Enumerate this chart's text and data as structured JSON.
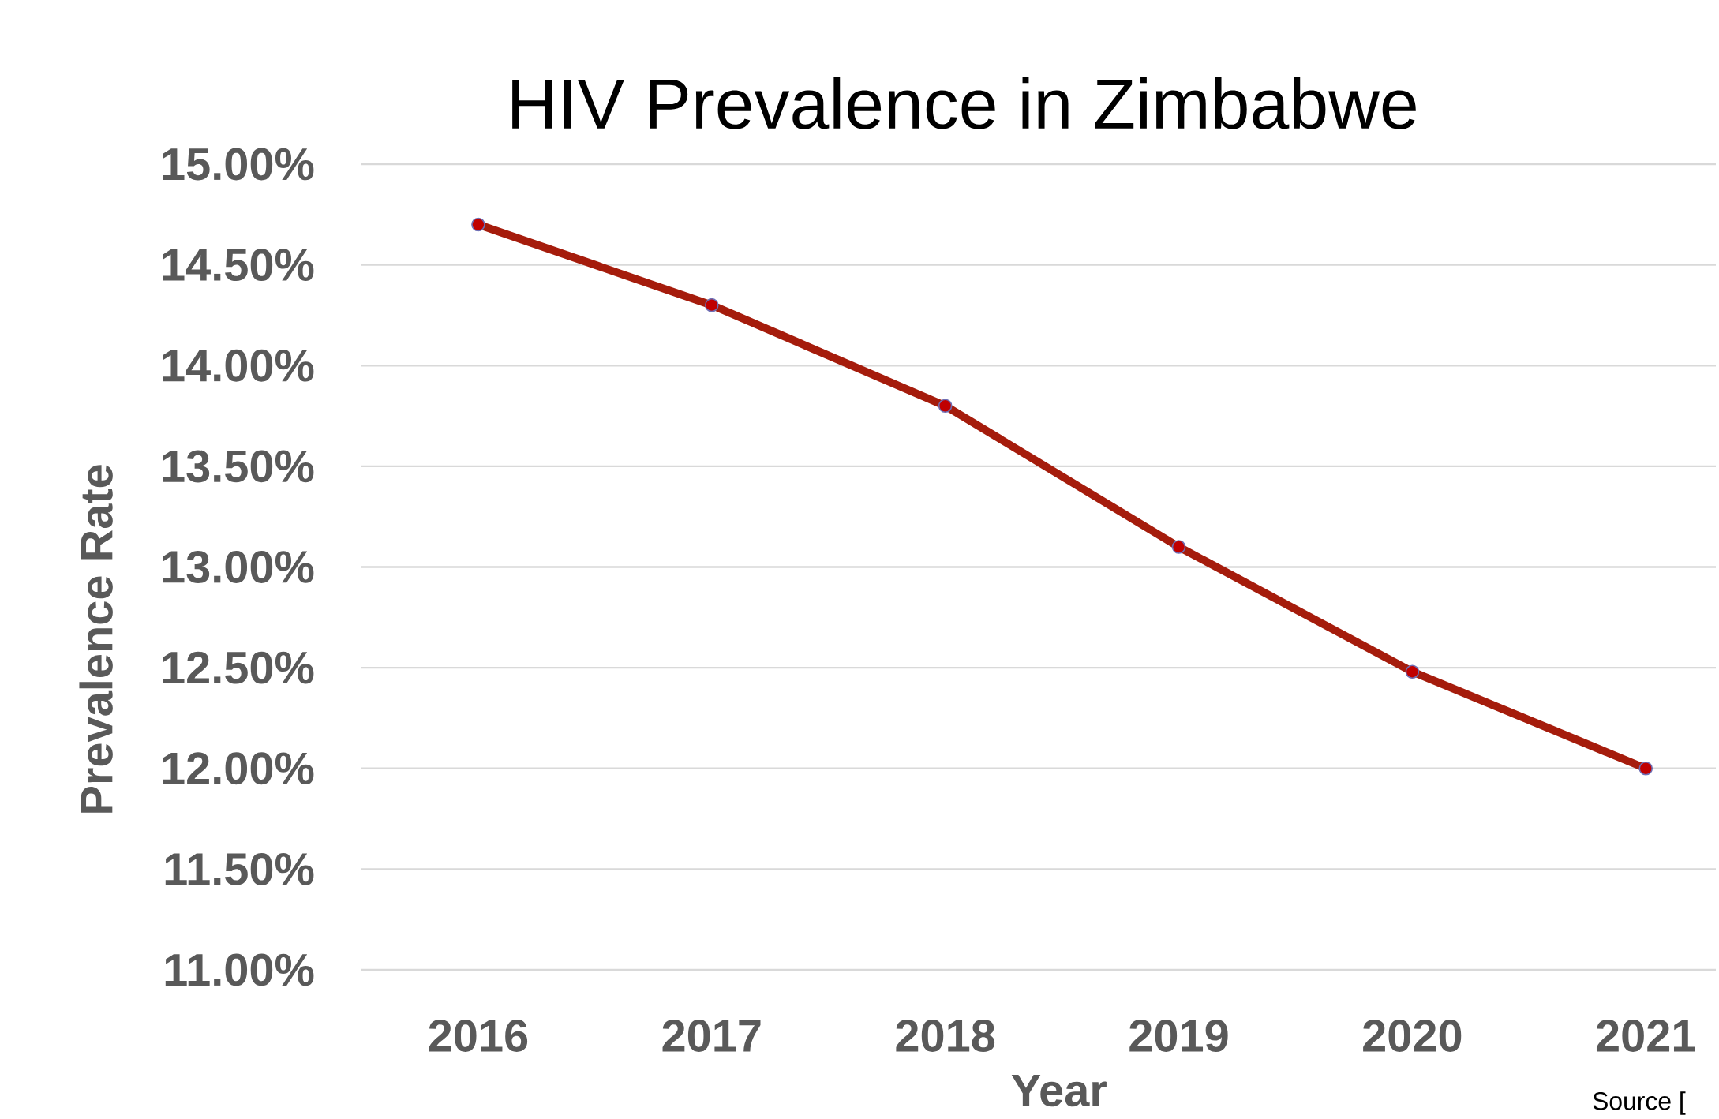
{
  "chart_data": {
    "type": "line",
    "title": "HIV Prevalence in Zimbabwe",
    "xlabel": "Year",
    "ylabel": "Prevalence Rate",
    "categories": [
      "2016",
      "2017",
      "2018",
      "2019",
      "2020",
      "2021"
    ],
    "series": [
      {
        "color": "#a51c0c",
        "values": [
          14.7,
          14.3,
          13.8,
          13.1,
          12.48,
          12.0
        ]
      }
    ],
    "ylim": [
      11,
      15
    ],
    "yticks": [
      {
        "value": 11,
        "label": "11.00%"
      },
      {
        "value": 11.5,
        "label": "11.50%"
      },
      {
        "value": 12,
        "label": "12.00%"
      },
      {
        "value": 12.5,
        "label": "12.50%"
      },
      {
        "value": 13,
        "label": "13.00%"
      },
      {
        "value": 13.5,
        "label": "13.50%"
      },
      {
        "value": 14,
        "label": "14.00%"
      },
      {
        "value": 14.5,
        "label": "14.50%"
      },
      {
        "value": 15,
        "label": "15.00%"
      }
    ],
    "grid": "y",
    "marker": "circle",
    "line_style": "solid",
    "annotations": [
      "Source ["
    ]
  }
}
